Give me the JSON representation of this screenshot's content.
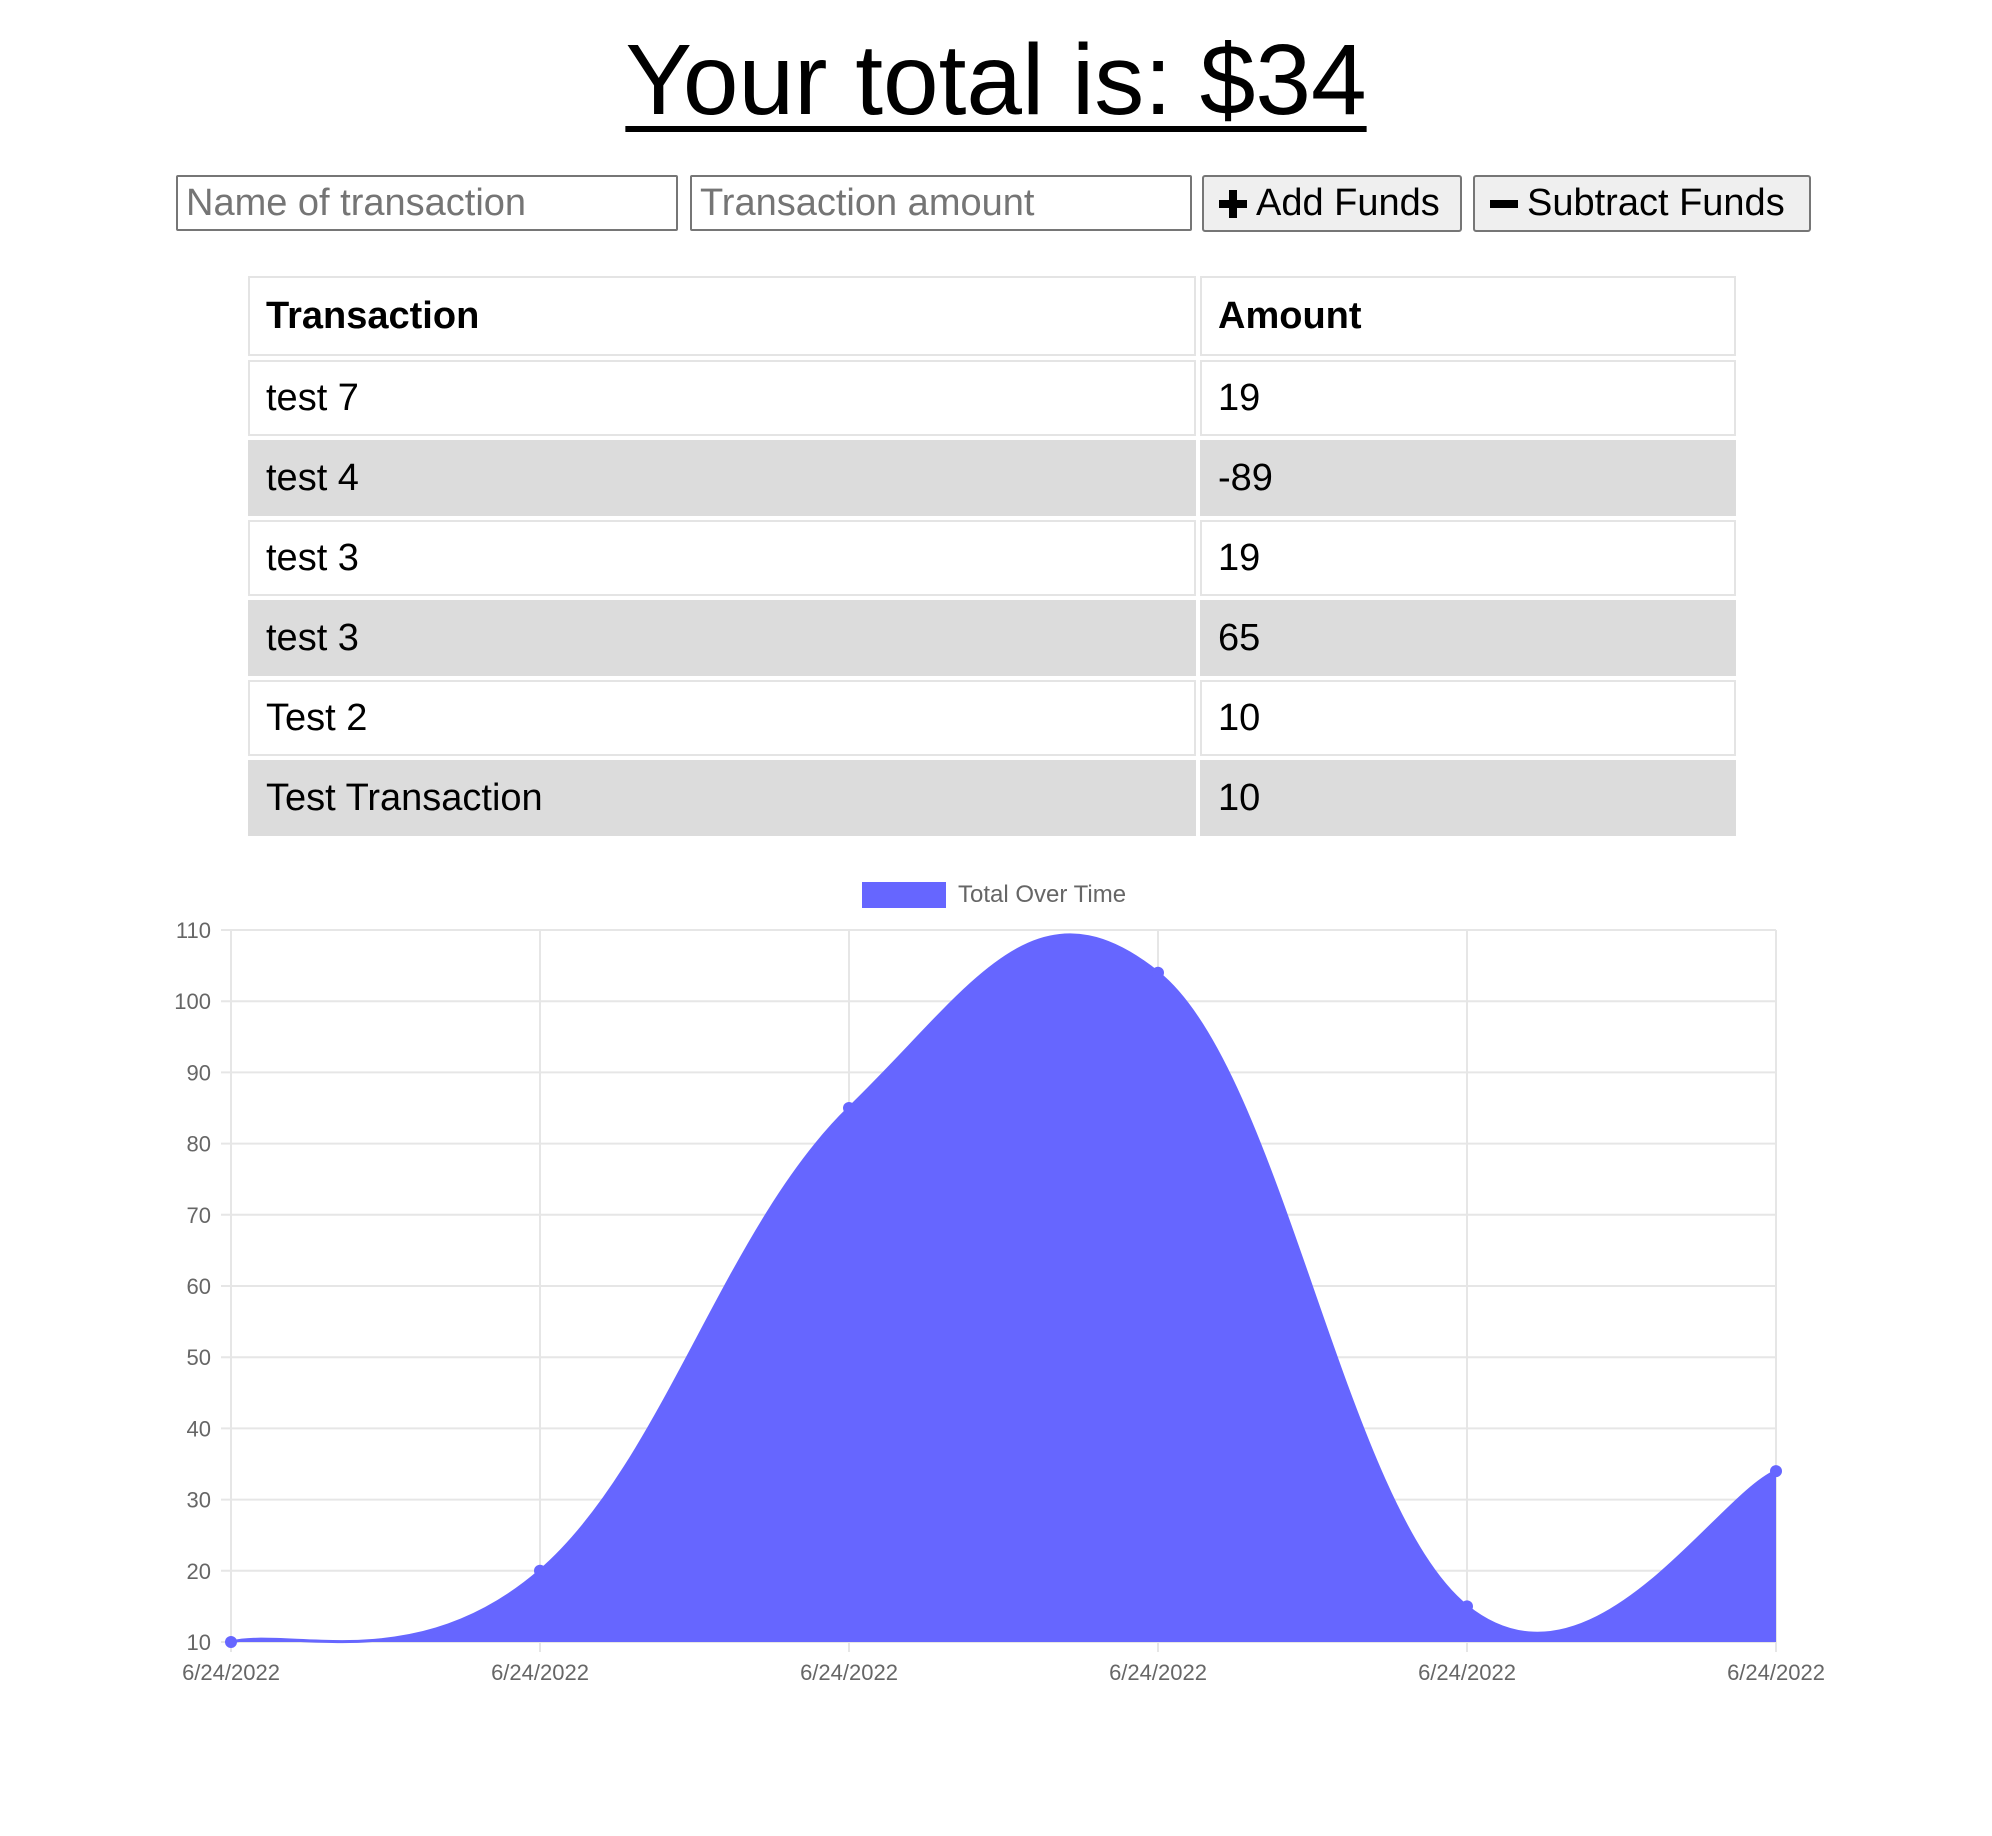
{
  "header": {
    "total_text": "Your total is: $34"
  },
  "form": {
    "name_placeholder": "Name of transaction",
    "amount_placeholder": "Transaction amount",
    "add_label": "Add Funds",
    "subtract_label": "Subtract Funds",
    "add_icon": "plus-icon",
    "subtract_icon": "minus-icon"
  },
  "table": {
    "headers": [
      "Transaction",
      "Amount"
    ],
    "rows": [
      {
        "name": "test 7",
        "amount": "19"
      },
      {
        "name": "test 4",
        "amount": "-89"
      },
      {
        "name": "test 3",
        "amount": "19"
      },
      {
        "name": "test 3",
        "amount": "65"
      },
      {
        "name": "Test 2",
        "amount": "10"
      },
      {
        "name": "Test Transaction",
        "amount": "10"
      }
    ]
  },
  "chart_data": {
    "type": "area",
    "legend": "Total Over Time",
    "legend_placement": "top-center",
    "x": [
      "6/24/2022",
      "6/24/2022",
      "6/24/2022",
      "6/24/2022",
      "6/24/2022",
      "6/24/2022"
    ],
    "series": [
      {
        "name": "Total Over Time",
        "values": [
          10,
          20,
          85,
          104,
          15,
          34
        ]
      }
    ],
    "ylim": [
      10,
      110
    ],
    "yticks": [
      10,
      20,
      30,
      40,
      50,
      60,
      70,
      80,
      90,
      100,
      110
    ],
    "grid": true,
    "fill_color": "#6666ff",
    "line_color": "#6666ff"
  }
}
